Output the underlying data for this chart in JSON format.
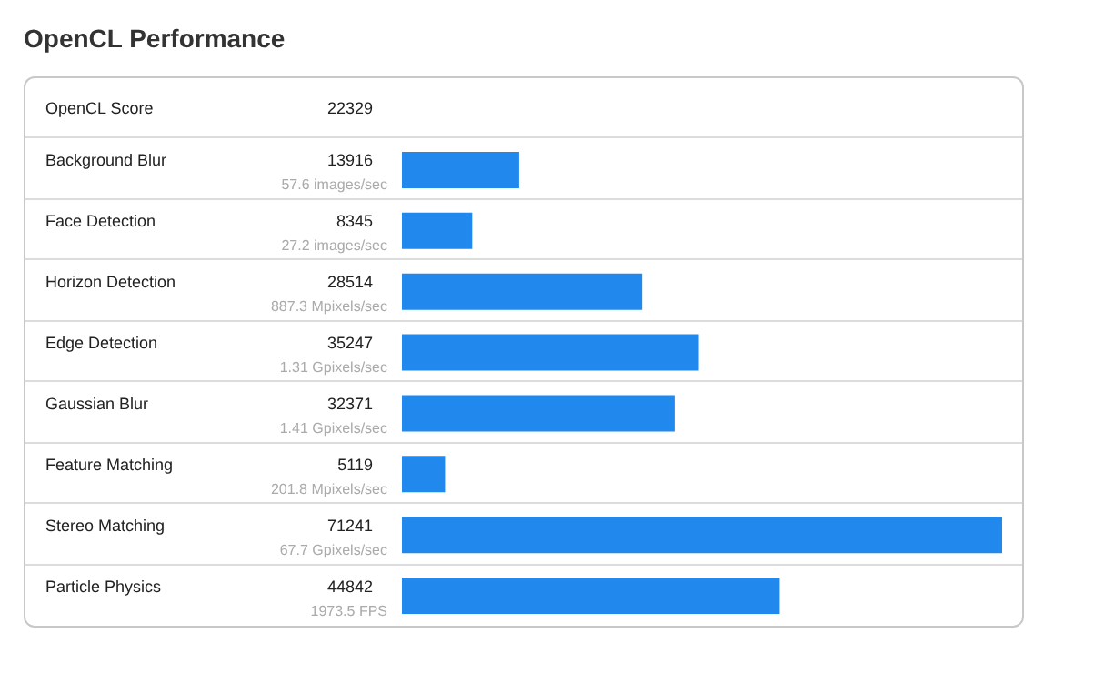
{
  "chart_data": {
    "type": "bar",
    "orientation": "horizontal",
    "title": "OpenCL Performance",
    "categories": [
      "OpenCL Score",
      "Background Blur",
      "Face Detection",
      "Horizon Detection",
      "Edge Detection",
      "Gaussian Blur",
      "Feature Matching",
      "Stereo Matching",
      "Particle Physics"
    ],
    "values": [
      null,
      13916,
      8345,
      28514,
      35247,
      32371,
      5119,
      71241,
      44842
    ],
    "value_labels": [
      "22329",
      "13916",
      "8345",
      "28514",
      "35247",
      "32371",
      "5119",
      "71241",
      "44842"
    ],
    "color": "#2188ee",
    "annotations": [
      "57.6 images/sec",
      "27.2 images/sec",
      "887.3 Mpixels/sec",
      "1.31 Gpixels/sec",
      "1.41 Gpixels/sec",
      "201.8 Mpixels/sec",
      "67.7 Gpixels/sec",
      "1973.5 FPS"
    ]
  }
}
